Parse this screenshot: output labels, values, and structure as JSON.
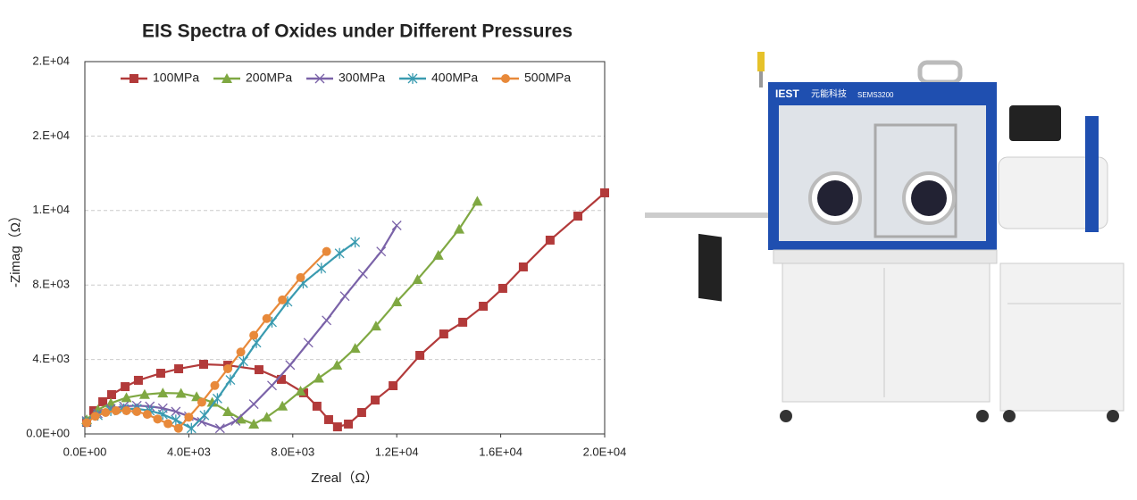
{
  "chart_data": {
    "type": "line",
    "title": "EIS Spectra of Oxides under Different Pressures",
    "xlabel": "Zreal（Ω）",
    "ylabel": "-Zimag（Ω）",
    "xlim": [
      0,
      20000
    ],
    "ylim": [
      0,
      20000
    ],
    "xticks": [
      {
        "value": 0,
        "label": "0.0E+00"
      },
      {
        "value": 4000,
        "label": "4.0E+03"
      },
      {
        "value": 8000,
        "label": "8.0E+03"
      },
      {
        "value": 12000,
        "label": "1.2E+04"
      },
      {
        "value": 16000,
        "label": "1.6E+04"
      },
      {
        "value": 20000,
        "label": "2.0E+04"
      }
    ],
    "yticks": [
      {
        "value": 0,
        "label": "0.0E+00"
      },
      {
        "value": 4000,
        "label": "4.E+03"
      },
      {
        "value": 8000,
        "label": "8.E+03"
      },
      {
        "value": 12000,
        "label": "1.E+04"
      },
      {
        "value": 16000,
        "label": "2.E+04"
      },
      {
        "value": 20000,
        "label": "2.E+04"
      }
    ],
    "grid": true,
    "legend": "top",
    "series": [
      {
        "name": "100MPa",
        "color": "#b23a3a",
        "marker": "square",
        "x": [
          70,
          340,
          690,
          1030,
          1550,
          2060,
          2920,
          3610,
          4570,
          5500,
          6700,
          7560,
          8420,
          8930,
          9380,
          9720,
          10140,
          10650,
          11170,
          11860,
          12890,
          13810,
          14540,
          15330,
          16080,
          16870,
          17900,
          18970,
          20000
        ],
        "values": [
          620,
          1250,
          1730,
          2110,
          2540,
          2880,
          3260,
          3500,
          3740,
          3690,
          3450,
          2930,
          2210,
          1490,
          770,
          380,
          530,
          1150,
          1820,
          2590,
          4220,
          5370,
          6000,
          6860,
          7820,
          8970,
          10410,
          11700,
          12950
        ]
      },
      {
        "name": "200MPa",
        "color": "#7fa842",
        "marker": "triangle",
        "x": [
          70,
          500,
          1000,
          1600,
          2300,
          3000,
          3700,
          4300,
          4900,
          5500,
          6000,
          6500,
          7000,
          7600,
          8300,
          9000,
          9700,
          10400,
          11200,
          12000,
          12800,
          13600,
          14400,
          15100
        ],
        "values": [
          770,
          1300,
          1650,
          1950,
          2120,
          2200,
          2180,
          2000,
          1700,
          1200,
          800,
          530,
          900,
          1500,
          2300,
          3000,
          3700,
          4600,
          5800,
          7100,
          8300,
          9600,
          11000,
          12500
        ]
      },
      {
        "name": "300MPa",
        "color": "#7a62a8",
        "marker": "x",
        "x": [
          70,
          500,
          1000,
          1500,
          2000,
          2500,
          3000,
          3500,
          4000,
          4500,
          5200,
          5800,
          6500,
          7200,
          7900,
          8600,
          9300,
          10000,
          10700,
          11400,
          12000
        ],
        "values": [
          700,
          1100,
          1350,
          1480,
          1520,
          1480,
          1380,
          1200,
          950,
          650,
          300,
          700,
          1600,
          2600,
          3700,
          4900,
          6100,
          7400,
          8600,
          9800,
          11200
        ]
      },
      {
        "name": "400MPa",
        "color": "#3a9bb0",
        "marker": "asterisk",
        "x": [
          70,
          500,
          1000,
          1500,
          2000,
          2500,
          3000,
          3500,
          4100,
          4600,
          5100,
          5600,
          6100,
          6600,
          7200,
          7800,
          8400,
          9100,
          9800,
          10400
        ],
        "values": [
          650,
          1000,
          1250,
          1350,
          1350,
          1250,
          1050,
          750,
          300,
          1000,
          1900,
          2900,
          3900,
          4900,
          6000,
          7100,
          8100,
          8900,
          9700,
          10300
        ]
      },
      {
        "name": "500MPa",
        "color": "#e8893a",
        "marker": "circle",
        "x": [
          70,
          400,
          800,
          1200,
          1600,
          2000,
          2400,
          2800,
          3200,
          3600,
          4000,
          4500,
          5000,
          5500,
          6000,
          6500,
          7000,
          7600,
          8300,
          9300
        ],
        "values": [
          600,
          950,
          1150,
          1250,
          1250,
          1200,
          1050,
          800,
          550,
          300,
          900,
          1700,
          2600,
          3500,
          4400,
          5300,
          6200,
          7200,
          8400,
          9800
        ]
      }
    ]
  },
  "product": {
    "logo": "IEST",
    "brand": "元能科技",
    "model": "SEMS3200"
  }
}
